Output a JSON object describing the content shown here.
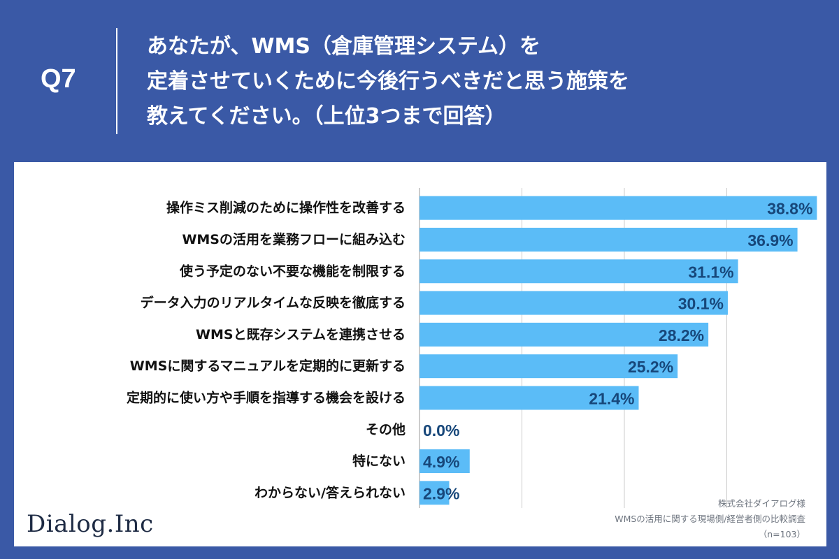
{
  "header": {
    "question_label": "Q7",
    "question_lines": [
      "あなたが、WMS（倉庫管理システム）を",
      "定着させていくために今後行うべきだと思う施策を",
      "教えてください。（上位3つまで回答）"
    ]
  },
  "chart_data": {
    "type": "bar",
    "orientation": "horizontal",
    "categories": [
      "操作ミス削減のために操作性を改善する",
      "WMSの活用を業務フローに組み込む",
      "使う予定のない不要な機能を制限する",
      "データ入力のリアルタイムな反映を徹底する",
      "WMSと既存システムを連携させる",
      "WMSに関するマニュアルを定期的に更新する",
      "定期的に使い方や手順を指導する機会を設ける",
      "その他",
      "特にない",
      "わからない/答えられない"
    ],
    "values": [
      38.8,
      36.9,
      31.1,
      30.1,
      28.2,
      25.2,
      21.4,
      0.0,
      4.9,
      2.9
    ],
    "value_labels": [
      "38.8%",
      "36.9%",
      "31.1%",
      "30.1%",
      "28.2%",
      "25.2%",
      "21.4%",
      "0.0%",
      "4.9%",
      "2.9%"
    ],
    "xlim": [
      0,
      40
    ],
    "grid": true,
    "bar_color": "#5bbcf7",
    "label_color": "#17477a"
  },
  "footer": {
    "logo": "Dialog.Inc",
    "source_lines": [
      "株式会社ダイアログ様",
      "WMSの活用に関する現場側/経営者側の比較調査",
      "（n=103）"
    ]
  },
  "colors": {
    "header_bg": "#3a59a6",
    "panel_bg": "#ffffff",
    "gridline": "#cccccc"
  }
}
